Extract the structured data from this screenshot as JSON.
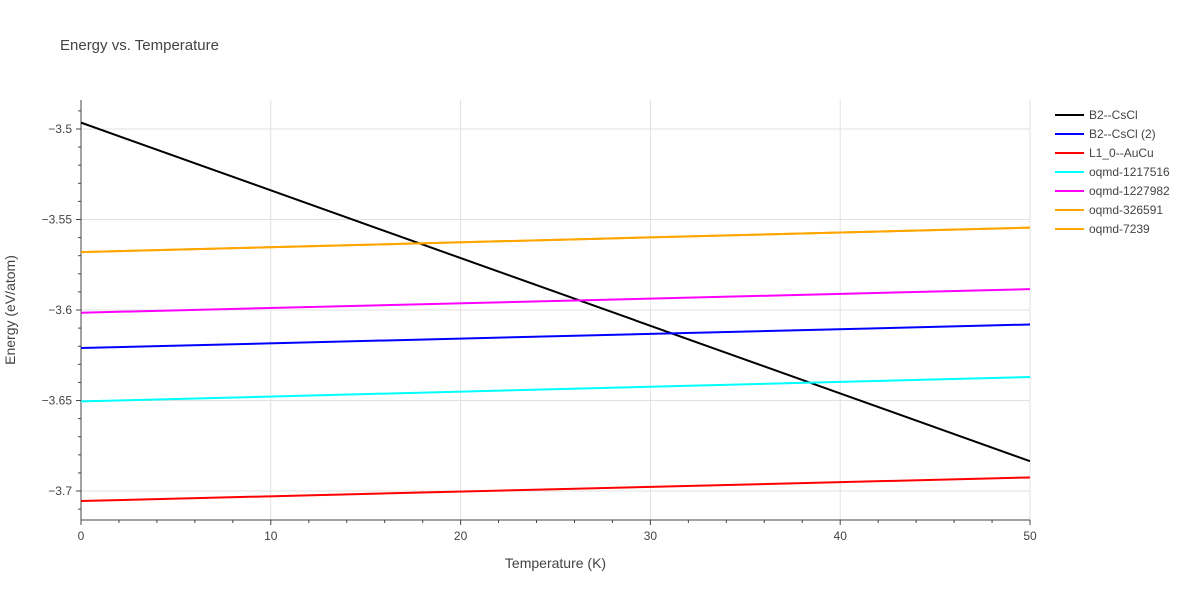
{
  "chart_data": {
    "type": "line",
    "title": "Energy vs. Temperature",
    "xlabel": "Temperature (K)",
    "ylabel": "Energy (eV/atom)",
    "xlim": [
      0,
      50
    ],
    "ylim": [
      -3.716,
      -3.484
    ],
    "x_ticks": [
      0,
      10,
      20,
      30,
      40,
      50
    ],
    "y_ticks": [
      -3.5,
      -3.55,
      -3.6,
      -3.65,
      -3.7
    ],
    "y_tick_labels": [
      "−3.5",
      "−3.55",
      "−3.6",
      "−3.65",
      "−3.7"
    ],
    "x_minor_step": 2,
    "y_minor_step": 0.01,
    "grid": true,
    "legend_position": "right",
    "series": [
      {
        "name": "B2--CsCl",
        "color": "#000000",
        "x": [
          0,
          50
        ],
        "y": [
          -3.4965,
          -3.6835
        ]
      },
      {
        "name": "B2--CsCl (2)",
        "color": "#0000ff",
        "x": [
          0,
          50
        ],
        "y": [
          -3.621,
          -3.608
        ]
      },
      {
        "name": "L1_0--AuCu",
        "color": "#ff0000",
        "x": [
          0,
          50
        ],
        "y": [
          -3.7055,
          -3.6925
        ]
      },
      {
        "name": "oqmd-1217516",
        "color": "#00ffff",
        "x": [
          0,
          50
        ],
        "y": [
          -3.6505,
          -3.637
        ]
      },
      {
        "name": "oqmd-1227982",
        "color": "#ff00ff",
        "x": [
          0,
          50
        ],
        "y": [
          -3.6015,
          -3.5885
        ]
      },
      {
        "name": "oqmd-326591",
        "color": "#ffa500",
        "x": [
          0,
          50
        ],
        "y": [
          -3.568,
          -3.5545
        ]
      },
      {
        "name": "oqmd-7239",
        "color": "#ffa500",
        "x": [
          0,
          50
        ],
        "y": [
          -3.568,
          -3.5545
        ]
      }
    ]
  }
}
